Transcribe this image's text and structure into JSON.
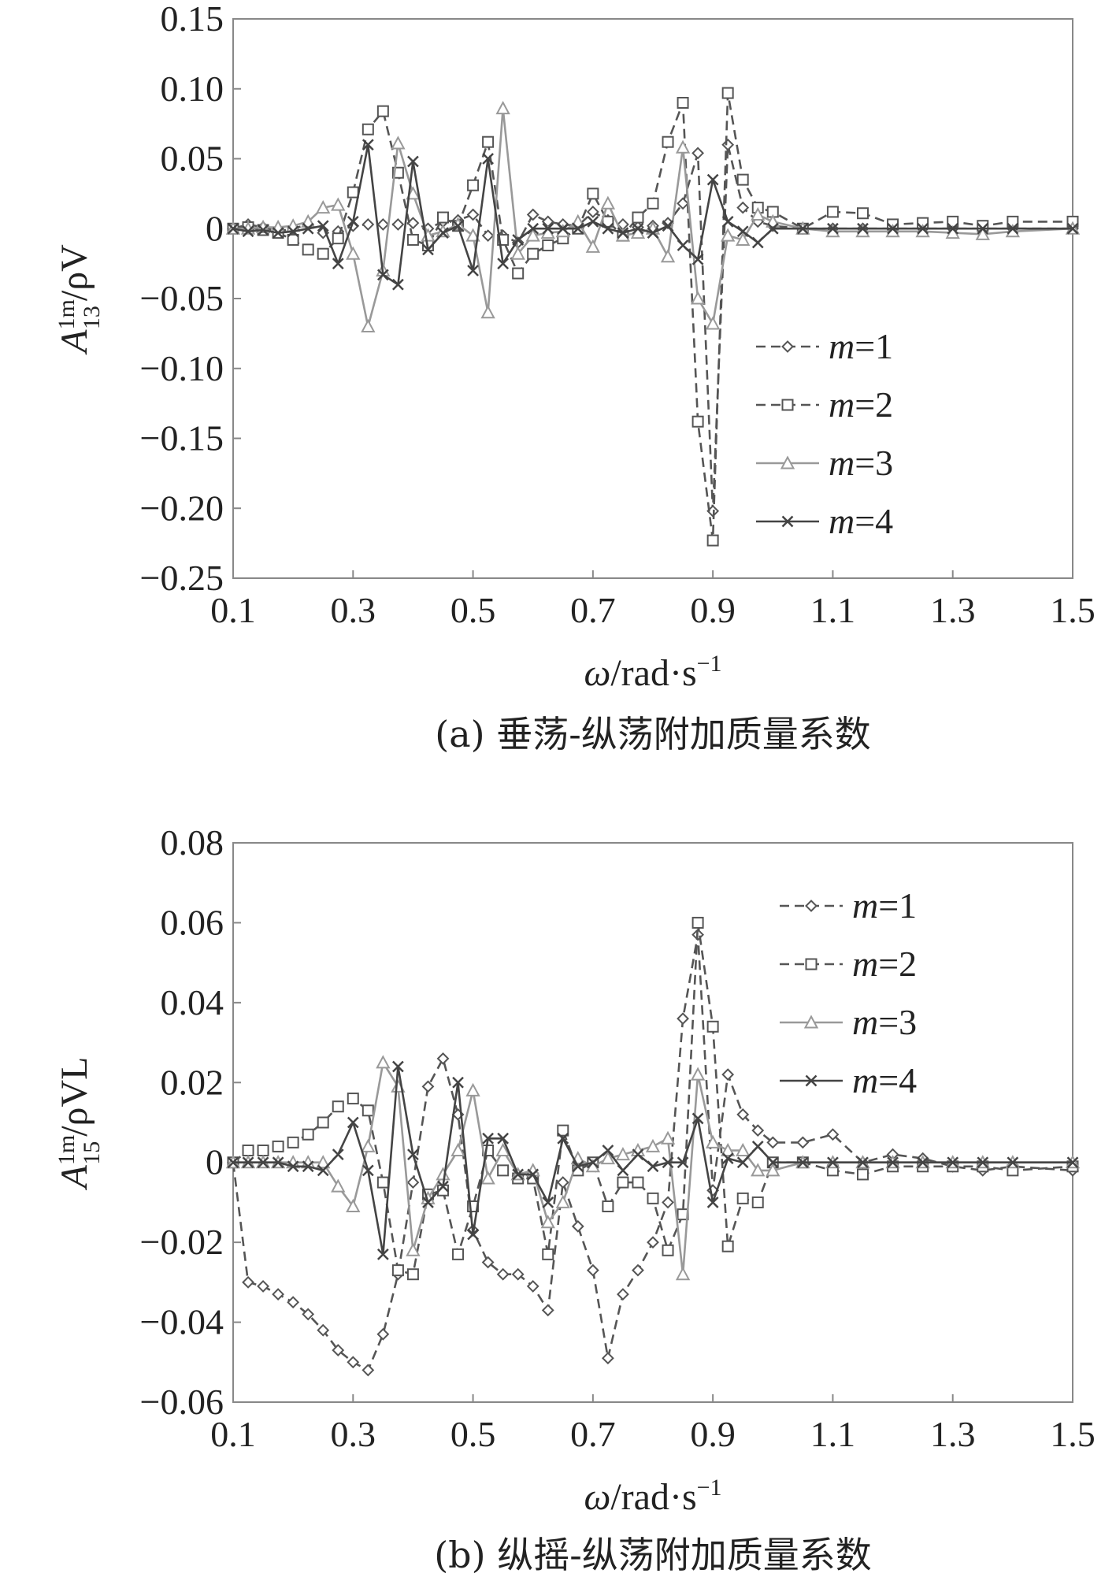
{
  "chart_data": [
    {
      "type": "line",
      "panel": "a",
      "caption": "(a) 垂荡-纵荡附加质量系数",
      "xlabel": "ω/rad·s⁻¹",
      "ylabel": "A₁₃¹ᵐ/ρV",
      "xlim": [
        0.1,
        1.5
      ],
      "ylim": [
        -0.25,
        0.15
      ],
      "xticks": [
        "0.1",
        "0.3",
        "0.5",
        "0.7",
        "0.9",
        "1.1",
        "1.3",
        "1.5"
      ],
      "yticks": [
        "0.15",
        "0.10",
        "0.05",
        "0",
        "−0.05",
        "−0.10",
        "−0.15",
        "−0.20",
        "−0.25"
      ],
      "legend_position": "right-center",
      "grid": false,
      "x": [
        0.1,
        0.125,
        0.15,
        0.175,
        0.2,
        0.225,
        0.25,
        0.275,
        0.3,
        0.325,
        0.35,
        0.375,
        0.4,
        0.425,
        0.45,
        0.475,
        0.5,
        0.525,
        0.55,
        0.575,
        0.6,
        0.625,
        0.65,
        0.675,
        0.7,
        0.725,
        0.75,
        0.775,
        0.8,
        0.825,
        0.85,
        0.875,
        0.9,
        0.925,
        0.95,
        0.975,
        1.0,
        1.05,
        1.1,
        1.15,
        1.2,
        1.25,
        1.3,
        1.35,
        1.4,
        1.5
      ],
      "series": [
        {
          "name": "m=1",
          "marker": "diamond",
          "dash": true,
          "color": "#555555",
          "values": [
            0,
            0.003,
            0.001,
            -0.002,
            0,
            0.003,
            -0.003,
            -0.002,
            0.002,
            0.003,
            0.003,
            0.003,
            0.004,
            0,
            0.005,
            0.006,
            0.01,
            -0.005,
            -0.005,
            -0.01,
            0.01,
            0.005,
            0.003,
            0.002,
            0.012,
            0.006,
            0.003,
            0.001,
            0.002,
            0.004,
            0.018,
            0.054,
            -0.202,
            0.06,
            0.015,
            0.005,
            0.002,
            0,
            0,
            0,
            0,
            0,
            0,
            0,
            0,
            0
          ]
        },
        {
          "name": "m=2",
          "marker": "square",
          "dash": true,
          "color": "#555555",
          "values": [
            0,
            0.001,
            -0.001,
            -0.003,
            -0.008,
            -0.015,
            -0.018,
            -0.007,
            0.026,
            0.071,
            0.084,
            0.04,
            -0.008,
            -0.012,
            0.008,
            0.002,
            0.031,
            0.062,
            -0.008,
            -0.032,
            -0.018,
            -0.012,
            -0.007,
            0,
            0.025,
            0.005,
            -0.005,
            0.008,
            0.018,
            0.062,
            0.09,
            -0.138,
            -0.223,
            0.097,
            0.035,
            0.015,
            0.012,
            0,
            0.012,
            0.011,
            0.003,
            0.004,
            0.005,
            0.002,
            0.005,
            0.005
          ]
        },
        {
          "name": "m=3",
          "marker": "triangle",
          "dash": false,
          "color": "#999999",
          "values": [
            0,
            0,
            0.001,
            0.001,
            0.002,
            0.005,
            0.015,
            0.017,
            -0.018,
            -0.07,
            -0.03,
            0.061,
            0.025,
            -0.005,
            -0.002,
            0.003,
            -0.005,
            -0.06,
            0.086,
            -0.018,
            -0.005,
            -0.003,
            -0.002,
            0.005,
            -0.013,
            0.018,
            -0.005,
            -0.003,
            0,
            -0.02,
            0.058,
            -0.05,
            -0.068,
            -0.005,
            -0.008,
            0.01,
            0.005,
            0,
            -0.002,
            -0.002,
            -0.002,
            -0.002,
            -0.003,
            -0.004,
            -0.002,
            0
          ]
        },
        {
          "name": "m=4",
          "marker": "cross",
          "dash": false,
          "color": "#444444",
          "values": [
            0,
            -0.002,
            -0.001,
            -0.003,
            -0.002,
            0,
            0.002,
            -0.025,
            0.005,
            0.06,
            -0.033,
            -0.04,
            0.048,
            -0.015,
            -0.003,
            0.002,
            -0.03,
            0.05,
            -0.025,
            -0.008,
            0,
            0,
            0,
            0,
            0.005,
            0,
            -0.003,
            0,
            -0.003,
            0.002,
            -0.012,
            -0.022,
            0.035,
            0.005,
            -0.002,
            -0.01,
            0,
            0,
            0,
            0,
            0,
            0,
            0,
            0,
            0,
            0
          ]
        }
      ]
    },
    {
      "type": "line",
      "panel": "b",
      "caption": "(b) 纵摇-纵荡附加质量系数",
      "xlabel": "ω/rad·s⁻¹",
      "ylabel": "A₁₅¹ᵐ/ρVL",
      "xlim": [
        0.1,
        1.5
      ],
      "ylim": [
        -0.06,
        0.08
      ],
      "xticks": [
        "0.1",
        "0.3",
        "0.5",
        "0.7",
        "0.9",
        "1.1",
        "1.3",
        "1.5"
      ],
      "yticks": [
        "0.08",
        "0.06",
        "0.04",
        "0.02",
        "0",
        "−0.02",
        "−0.04",
        "−0.06"
      ],
      "legend_position": "top-right",
      "grid": false,
      "x": [
        0.1,
        0.125,
        0.15,
        0.175,
        0.2,
        0.225,
        0.25,
        0.275,
        0.3,
        0.325,
        0.35,
        0.375,
        0.4,
        0.425,
        0.45,
        0.475,
        0.5,
        0.525,
        0.55,
        0.575,
        0.6,
        0.625,
        0.65,
        0.675,
        0.7,
        0.725,
        0.75,
        0.775,
        0.8,
        0.825,
        0.85,
        0.875,
        0.9,
        0.925,
        0.95,
        0.975,
        1.0,
        1.05,
        1.1,
        1.15,
        1.2,
        1.25,
        1.3,
        1.35,
        1.4,
        1.5
      ],
      "series": [
        {
          "name": "m=1",
          "marker": "diamond",
          "dash": true,
          "color": "#555555",
          "values": [
            0,
            -0.03,
            -0.031,
            -0.033,
            -0.035,
            -0.038,
            -0.042,
            -0.047,
            -0.05,
            -0.052,
            -0.043,
            -0.028,
            -0.005,
            0.019,
            0.026,
            0.012,
            -0.017,
            -0.025,
            -0.028,
            -0.028,
            -0.031,
            -0.037,
            -0.005,
            -0.016,
            -0.027,
            -0.049,
            -0.033,
            -0.027,
            -0.02,
            -0.01,
            0.036,
            0.057,
            -0.007,
            0.022,
            0.012,
            0.008,
            0.005,
            0.005,
            0.007,
            0,
            0.002,
            0.001,
            -0.001,
            -0.002,
            -0.001,
            -0.002
          ]
        },
        {
          "name": "m=2",
          "marker": "square",
          "dash": true,
          "color": "#555555",
          "values": [
            0,
            0.003,
            0.003,
            0.004,
            0.005,
            0.007,
            0.01,
            0.014,
            0.016,
            0.013,
            -0.005,
            -0.027,
            -0.028,
            -0.008,
            -0.007,
            -0.023,
            -0.011,
            0.003,
            -0.002,
            -0.004,
            -0.004,
            -0.023,
            0.008,
            -0.002,
            0,
            -0.011,
            -0.005,
            -0.005,
            -0.009,
            -0.022,
            -0.013,
            0.06,
            0.034,
            -0.021,
            -0.009,
            -0.01,
            0,
            0,
            -0.002,
            -0.003,
            -0.001,
            -0.001,
            -0.001,
            -0.001,
            -0.002,
            -0.001
          ]
        },
        {
          "name": "m=3",
          "marker": "triangle",
          "dash": false,
          "color": "#999999",
          "values": [
            0,
            0,
            0,
            0,
            0,
            0,
            0,
            -0.006,
            -0.011,
            0.004,
            0.025,
            0.019,
            -0.022,
            -0.009,
            -0.003,
            0.003,
            0.018,
            -0.004,
            0.003,
            -0.003,
            -0.002,
            -0.015,
            -0.01,
            0.001,
            -0.001,
            0.001,
            0.002,
            0.003,
            0.004,
            0.006,
            -0.028,
            0.022,
            0.005,
            0.003,
            0.003,
            -0.002,
            -0.002,
            0,
            0,
            0,
            0,
            0,
            0,
            0,
            0,
            0
          ]
        },
        {
          "name": "m=4",
          "marker": "cross",
          "dash": false,
          "color": "#444444",
          "values": [
            0,
            0,
            0,
            0,
            -0.001,
            -0.001,
            -0.002,
            0.002,
            0.01,
            -0.002,
            -0.023,
            0.024,
            0.002,
            -0.01,
            -0.006,
            0.02,
            -0.018,
            0.006,
            0.006,
            -0.003,
            -0.003,
            -0.01,
            0.006,
            -0.001,
            0,
            0.003,
            -0.002,
            0.002,
            -0.001,
            0,
            0,
            0.011,
            -0.01,
            0.001,
            0,
            0.004,
            0,
            0,
            0,
            0,
            0,
            0,
            0,
            0,
            0,
            0
          ]
        }
      ]
    }
  ]
}
